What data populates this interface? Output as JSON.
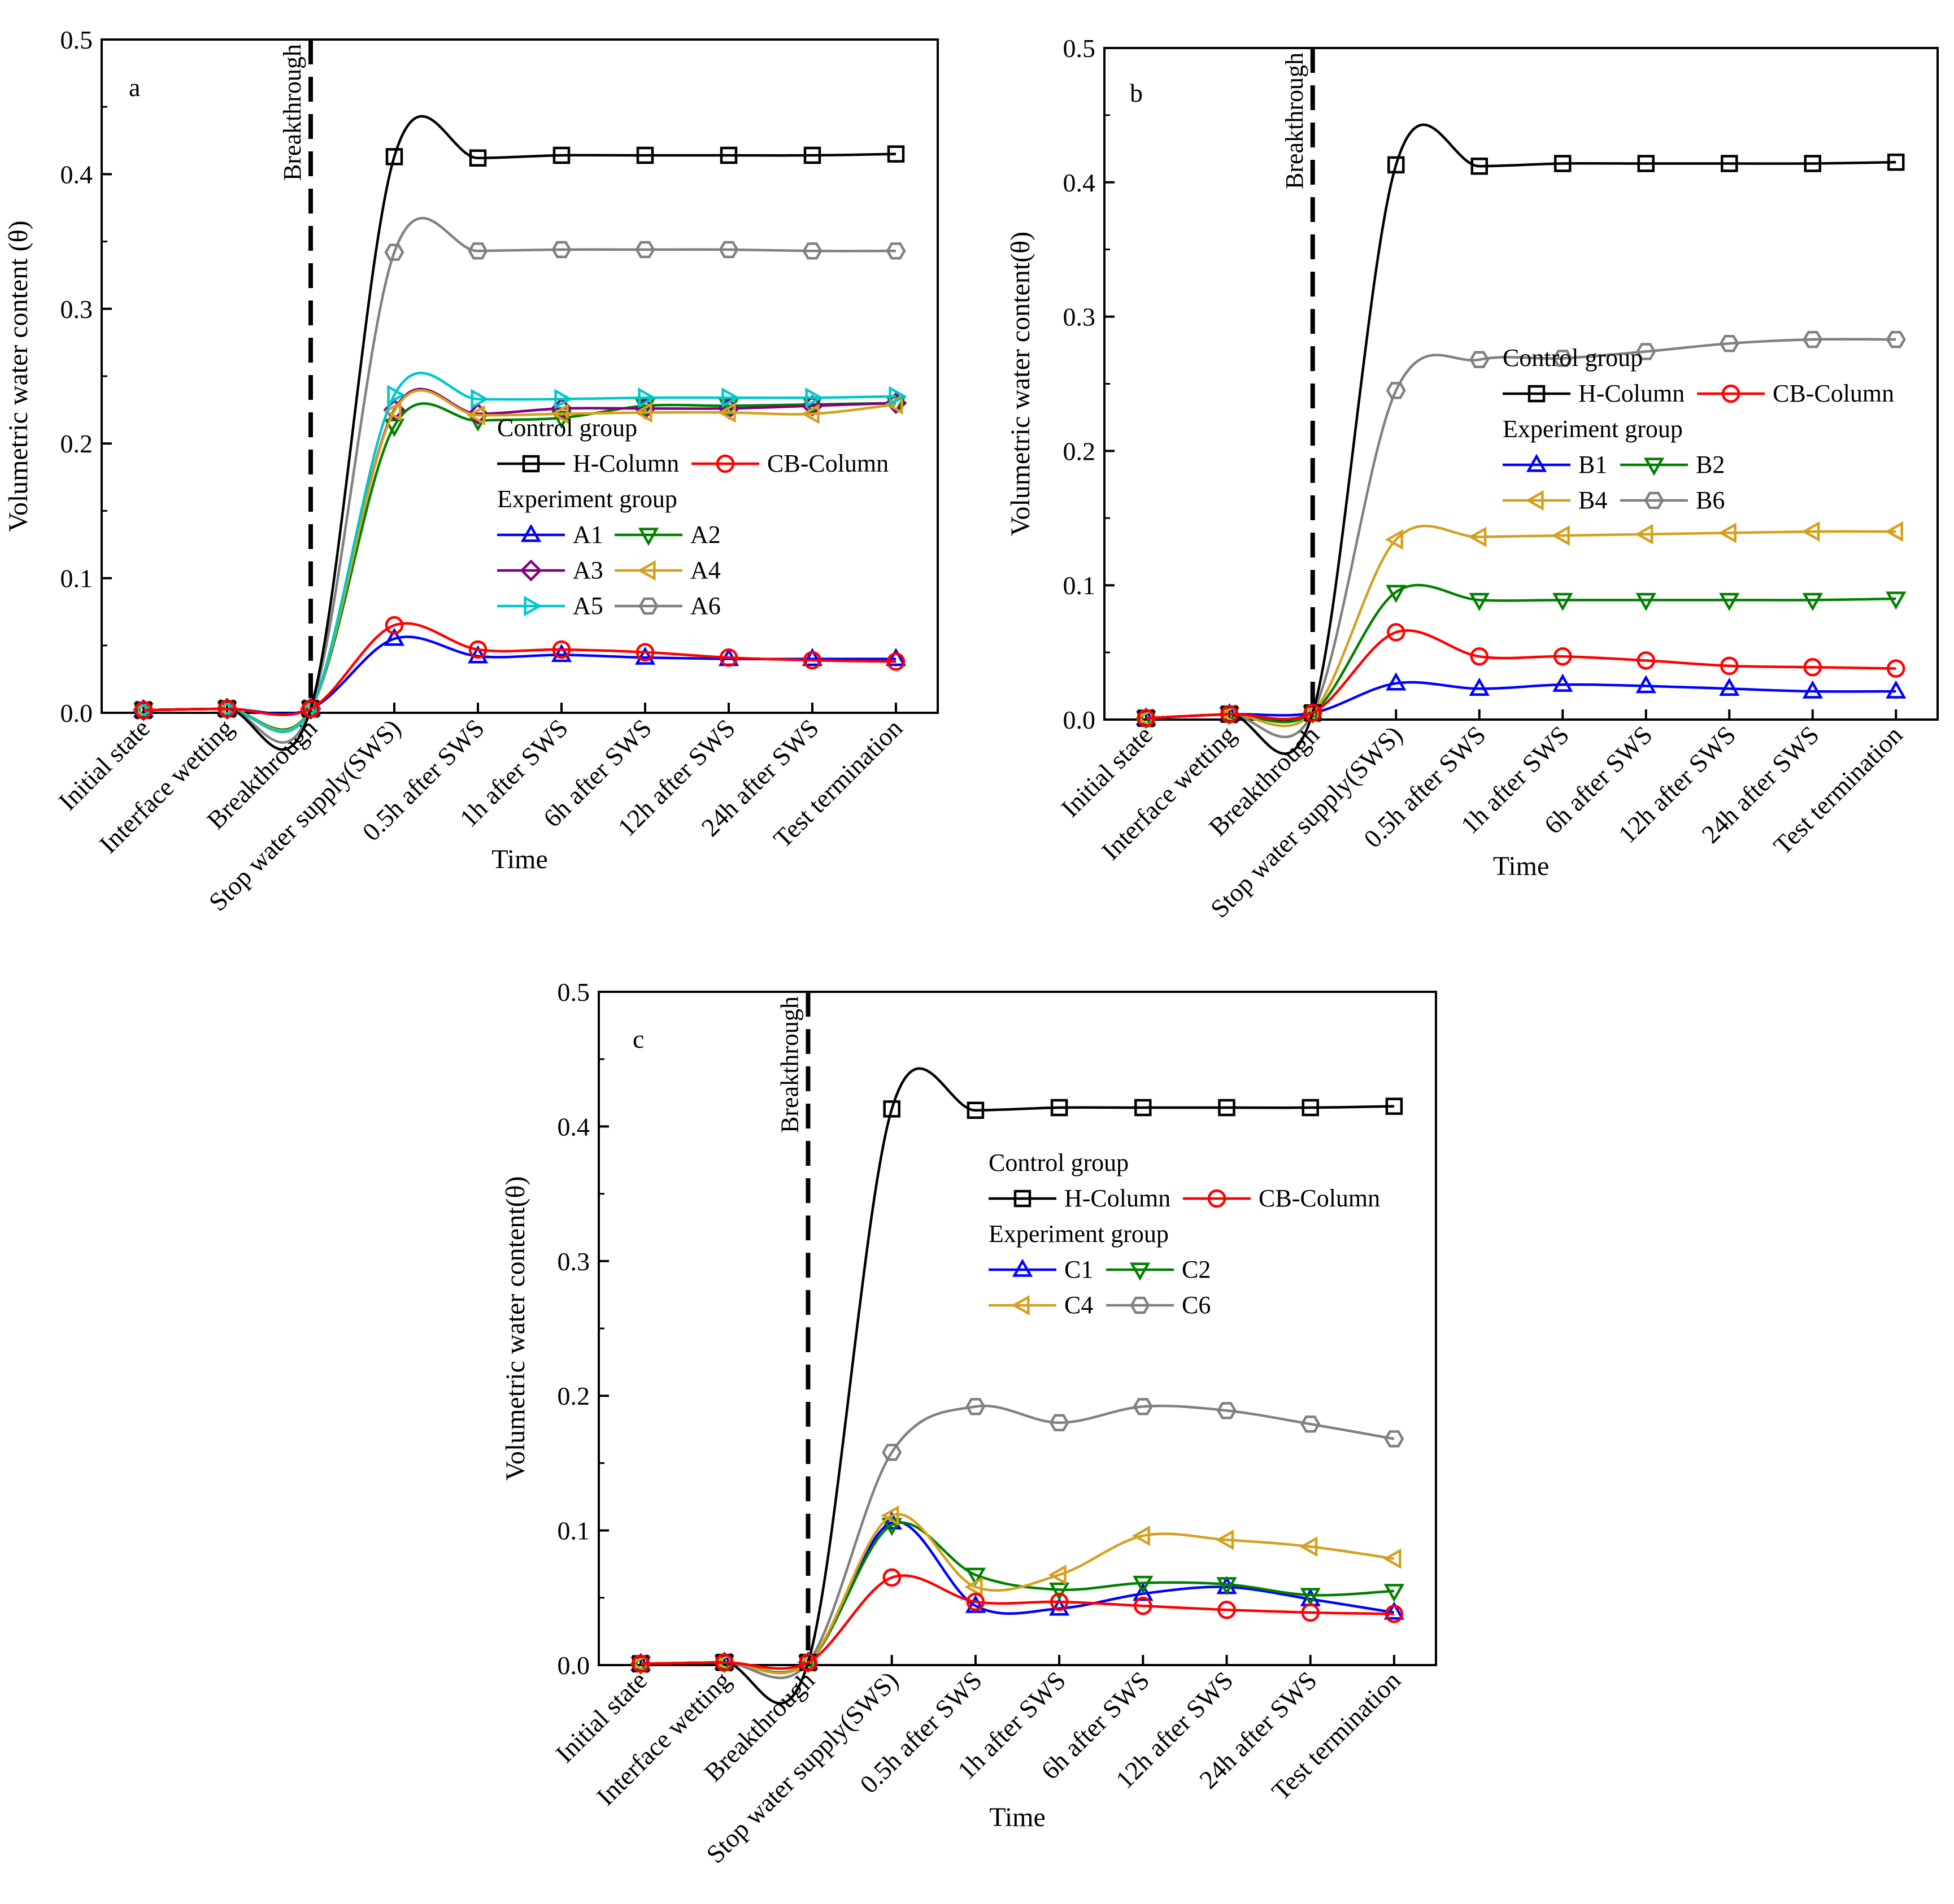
{
  "chart_data": [
    {
      "type": "line",
      "panel": "a",
      "xlabel": "Time",
      "ylabel": "Volumetric water content (θ)",
      "ylim": [
        0,
        0.5
      ],
      "yticks": [
        "0.0",
        "0.1",
        "0.2",
        "0.3",
        "0.4",
        "0.5"
      ],
      "categories": [
        "Initial state",
        "Interface wetting",
        "Breakthrough",
        "Stop water supply(SWS)",
        "0.5h after SWS",
        "1h after SWS",
        "6h after SWS",
        "12h after SWS",
        "24h after SWS",
        "Test termination"
      ],
      "annotation": "Breakthrough",
      "legend": {
        "control_title": "Control group",
        "experiment_title": "Experiment group",
        "control": [
          "H-Column",
          "CB-Column"
        ],
        "experiment": [
          "A1",
          "A2",
          "A3",
          "A4",
          "A5",
          "A6"
        ]
      },
      "series": [
        {
          "name": "H-Column",
          "group": "control",
          "color": "#000000",
          "marker": "square",
          "values": [
            0.002,
            0.003,
            0.003,
            0.413,
            0.412,
            0.414,
            0.414,
            0.414,
            0.414,
            0.415
          ]
        },
        {
          "name": "CB-Column",
          "group": "control",
          "color": "#ff0000",
          "marker": "circle",
          "values": [
            0.002,
            0.003,
            0.003,
            0.065,
            0.047,
            0.047,
            0.045,
            0.041,
            0.039,
            0.038
          ]
        },
        {
          "name": "A1",
          "group": "experiment",
          "color": "#0000ff",
          "marker": "triangle-up",
          "values": [
            0.002,
            0.003,
            0.003,
            0.055,
            0.042,
            0.043,
            0.041,
            0.04,
            0.04,
            0.04
          ]
        },
        {
          "name": "A2",
          "group": "experiment",
          "color": "#008000",
          "marker": "triangle-down",
          "values": [
            0.002,
            0.003,
            0.003,
            0.213,
            0.217,
            0.219,
            0.228,
            0.228,
            0.229,
            0.23
          ]
        },
        {
          "name": "A3",
          "group": "experiment",
          "color": "#800080",
          "marker": "diamond",
          "values": [
            0.002,
            0.003,
            0.003,
            0.225,
            0.222,
            0.226,
            0.226,
            0.226,
            0.228,
            0.23
          ]
        },
        {
          "name": "A4",
          "group": "experiment",
          "color": "#d4a020",
          "marker": "triangle-left",
          "values": [
            0.002,
            0.003,
            0.003,
            0.224,
            0.221,
            0.222,
            0.223,
            0.223,
            0.222,
            0.229
          ]
        },
        {
          "name": "A5",
          "group": "experiment",
          "color": "#00c8c8",
          "marker": "triangle-right",
          "values": [
            0.002,
            0.003,
            0.003,
            0.236,
            0.233,
            0.233,
            0.234,
            0.234,
            0.234,
            0.235
          ]
        },
        {
          "name": "A6",
          "group": "experiment",
          "color": "#808080",
          "marker": "hexagon",
          "values": [
            0.002,
            0.003,
            0.003,
            0.342,
            0.343,
            0.344,
            0.344,
            0.344,
            0.343,
            0.343
          ]
        }
      ]
    },
    {
      "type": "line",
      "panel": "b",
      "xlabel": "Time",
      "ylabel": "Volumetric water content(θ)",
      "ylim": [
        0,
        0.5
      ],
      "yticks": [
        "0.0",
        "0.1",
        "0.2",
        "0.3",
        "0.4",
        "0.5"
      ],
      "categories": [
        "Initial state",
        "Interface wetting",
        "Breakthrough",
        "Stop water supply(SWS)",
        "0.5h after SWS",
        "1h after SWS",
        "6h after SWS",
        "12h after SWS",
        "24h after SWS",
        "Test termination"
      ],
      "annotation": "Breakthrough",
      "legend": {
        "control_title": "Control group",
        "experiment_title": "Experiment group",
        "control": [
          "H-Column",
          "CB-Column"
        ],
        "experiment": [
          "B1",
          "B2",
          "B4",
          "B6"
        ]
      },
      "series": [
        {
          "name": "H-Column",
          "group": "control",
          "color": "#000000",
          "marker": "square",
          "values": [
            0.001,
            0.004,
            0.005,
            0.413,
            0.412,
            0.414,
            0.414,
            0.414,
            0.414,
            0.415
          ]
        },
        {
          "name": "CB-Column",
          "group": "control",
          "color": "#ff0000",
          "marker": "circle",
          "values": [
            0.001,
            0.004,
            0.005,
            0.065,
            0.047,
            0.047,
            0.044,
            0.04,
            0.039,
            0.038
          ]
        },
        {
          "name": "B1",
          "group": "experiment",
          "color": "#0000ff",
          "marker": "triangle-up",
          "values": [
            0.001,
            0.004,
            0.005,
            0.027,
            0.023,
            0.026,
            0.025,
            0.023,
            0.021,
            0.021
          ]
        },
        {
          "name": "B2",
          "group": "experiment",
          "color": "#008000",
          "marker": "triangle-down",
          "values": [
            0.001,
            0.004,
            0.005,
            0.095,
            0.089,
            0.089,
            0.089,
            0.089,
            0.089,
            0.09
          ]
        },
        {
          "name": "B4",
          "group": "experiment",
          "color": "#d4a020",
          "marker": "triangle-left",
          "values": [
            0.001,
            0.004,
            0.005,
            0.134,
            0.136,
            0.137,
            0.138,
            0.139,
            0.14,
            0.14
          ]
        },
        {
          "name": "B6",
          "group": "experiment",
          "color": "#808080",
          "marker": "hexagon",
          "values": [
            0.001,
            0.004,
            0.005,
            0.245,
            0.268,
            0.269,
            0.274,
            0.28,
            0.283,
            0.283
          ]
        }
      ]
    },
    {
      "type": "line",
      "panel": "c",
      "xlabel": "Time",
      "ylabel": "Volumetric water content(θ)",
      "ylim": [
        0,
        0.5
      ],
      "yticks": [
        "0.0",
        "0.1",
        "0.2",
        "0.3",
        "0.4",
        "0.5"
      ],
      "categories": [
        "Initial state",
        "Interface wetting",
        "Breakthrough",
        "Stop water supply(SWS)",
        "0.5h after SWS",
        "1h after SWS",
        "6h after SWS",
        "12h after SWS",
        "24h after SWS",
        "Test termination"
      ],
      "annotation": "Breakthrough",
      "legend": {
        "control_title": "Control group",
        "experiment_title": "Experiment group",
        "control": [
          "H-Column",
          "CB-Column"
        ],
        "experiment": [
          "C1",
          "C2",
          "C4",
          "C6"
        ]
      },
      "series": [
        {
          "name": "H-Column",
          "group": "control",
          "color": "#000000",
          "marker": "square",
          "values": [
            0.001,
            0.002,
            0.002,
            0.413,
            0.412,
            0.414,
            0.414,
            0.414,
            0.414,
            0.415
          ]
        },
        {
          "name": "CB-Column",
          "group": "control",
          "color": "#ff0000",
          "marker": "circle",
          "values": [
            0.001,
            0.002,
            0.002,
            0.065,
            0.047,
            0.047,
            0.044,
            0.041,
            0.039,
            0.038
          ]
        },
        {
          "name": "C1",
          "group": "experiment",
          "color": "#0000ff",
          "marker": "triangle-up",
          "values": [
            0.001,
            0.002,
            0.002,
            0.106,
            0.044,
            0.042,
            0.053,
            0.058,
            0.049,
            0.039
          ]
        },
        {
          "name": "C2",
          "group": "experiment",
          "color": "#008000",
          "marker": "triangle-down",
          "values": [
            0.001,
            0.002,
            0.002,
            0.104,
            0.067,
            0.056,
            0.061,
            0.06,
            0.052,
            0.055
          ]
        },
        {
          "name": "C4",
          "group": "experiment",
          "color": "#d4a020",
          "marker": "triangle-left",
          "values": [
            0.001,
            0.002,
            0.002,
            0.111,
            0.058,
            0.067,
            0.096,
            0.093,
            0.088,
            0.079
          ]
        },
        {
          "name": "C6",
          "group": "experiment",
          "color": "#808080",
          "marker": "hexagon",
          "values": [
            0.001,
            0.002,
            0.002,
            0.158,
            0.192,
            0.18,
            0.192,
            0.189,
            0.179,
            0.168
          ]
        }
      ]
    }
  ]
}
